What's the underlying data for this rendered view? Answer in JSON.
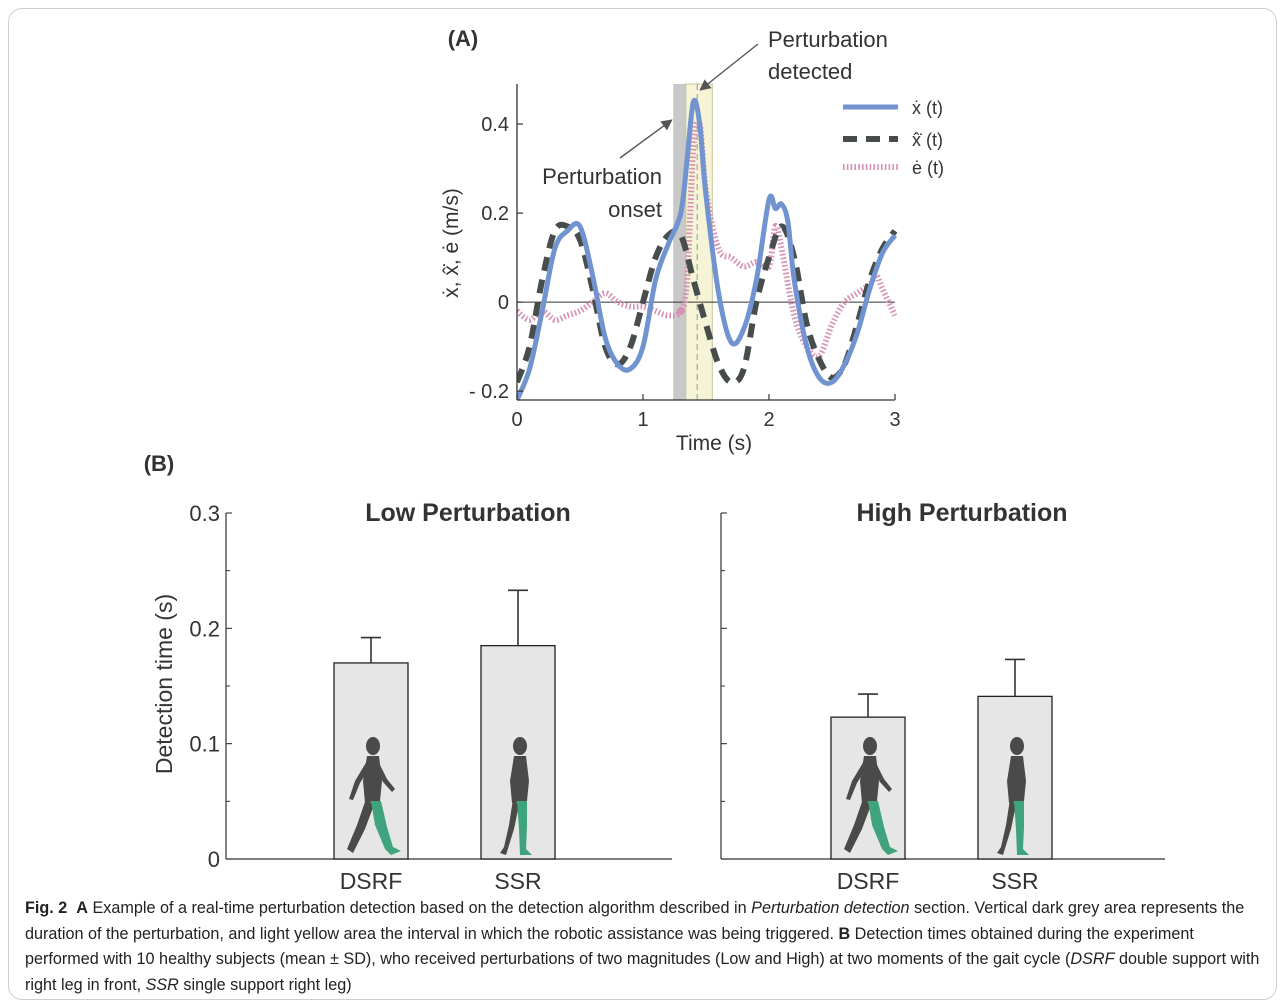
{
  "chart_data": [
    {
      "type": "line",
      "panel_label": "(A)",
      "xlabel": "Time (s)",
      "ylabel": "ẋ, x̂̇, ė (m/s)",
      "xlim": [
        0,
        3
      ],
      "ylim": [
        -0.22,
        0.49
      ],
      "xticks": [
        0,
        1,
        2,
        3
      ],
      "xtick_labels": [
        "0",
        "1",
        "2",
        "3"
      ],
      "yticks": [
        -0.2,
        0,
        0.2,
        0.4
      ],
      "ytick_labels": [
        "- 0.2",
        "0",
        "0.2",
        "0.4"
      ],
      "perturbation_span": [
        1.24,
        1.34
      ],
      "trigger_span": [
        1.34,
        1.55
      ],
      "detection_time": 1.43,
      "annotations": [
        {
          "text": [
            "Perturbation",
            "onset"
          ],
          "points_to_time": 1.26
        },
        {
          "text": [
            "Perturbation",
            "detected"
          ],
          "points_to_time": 1.43
        }
      ],
      "legend": [
        "ẋ (t)",
        "x̂̇ (t)",
        "ė (t)"
      ],
      "legend_position": "top-right",
      "series": [
        {
          "name": "ẋ (t)",
          "style": "solid",
          "color": "#7193cf",
          "x": [
            0.0,
            0.1,
            0.2,
            0.3,
            0.4,
            0.5,
            0.6,
            0.7,
            0.8,
            0.9,
            1.0,
            1.1,
            1.2,
            1.3,
            1.35,
            1.4,
            1.45,
            1.5,
            1.6,
            1.7,
            1.8,
            1.9,
            2.0,
            2.05,
            2.1,
            2.15,
            2.2,
            2.3,
            2.4,
            2.5,
            2.6,
            2.7,
            2.8,
            2.9,
            3.0
          ],
          "y": [
            -0.22,
            -0.15,
            -0.02,
            0.12,
            0.16,
            0.17,
            0.06,
            -0.08,
            -0.14,
            -0.15,
            -0.1,
            0.05,
            0.13,
            0.2,
            0.32,
            0.45,
            0.4,
            0.24,
            0.02,
            -0.09,
            -0.06,
            0.05,
            0.23,
            0.21,
            0.22,
            0.18,
            0.05,
            -0.1,
            -0.17,
            -0.18,
            -0.14,
            -0.07,
            0.03,
            0.11,
            0.15
          ]
        },
        {
          "name": "x̂̇ (t)",
          "style": "dashed",
          "color": "#474d4c",
          "x": [
            0.0,
            0.1,
            0.2,
            0.3,
            0.4,
            0.5,
            0.6,
            0.7,
            0.8,
            0.9,
            1.0,
            1.1,
            1.2,
            1.3,
            1.4,
            1.5,
            1.6,
            1.7,
            1.8,
            1.9,
            2.0,
            2.1,
            2.2,
            2.3,
            2.4,
            2.5,
            2.6,
            2.7,
            2.8,
            2.9,
            3.0
          ],
          "y": [
            -0.18,
            -0.1,
            0.05,
            0.16,
            0.17,
            0.14,
            0.03,
            -0.1,
            -0.14,
            -0.1,
            0.0,
            0.1,
            0.15,
            0.15,
            0.05,
            -0.05,
            -0.14,
            -0.18,
            -0.15,
            0.0,
            0.1,
            0.17,
            0.1,
            -0.05,
            -0.13,
            -0.17,
            -0.14,
            -0.05,
            0.05,
            0.12,
            0.16
          ]
        },
        {
          "name": "ė (t)",
          "style": "dotted",
          "color": "#d890b4",
          "x": [
            0.0,
            0.1,
            0.2,
            0.3,
            0.4,
            0.5,
            0.6,
            0.7,
            0.8,
            0.9,
            1.0,
            1.1,
            1.2,
            1.3,
            1.35,
            1.4,
            1.45,
            1.5,
            1.6,
            1.7,
            1.8,
            1.9,
            2.0,
            2.05,
            2.1,
            2.2,
            2.3,
            2.4,
            2.5,
            2.6,
            2.7,
            2.8,
            2.85,
            2.9,
            3.0
          ],
          "y": [
            -0.02,
            -0.04,
            -0.02,
            -0.04,
            -0.03,
            -0.02,
            0.0,
            0.02,
            0.0,
            -0.01,
            -0.01,
            -0.02,
            -0.03,
            -0.02,
            0.05,
            0.35,
            0.4,
            0.25,
            0.12,
            0.1,
            0.08,
            0.09,
            0.08,
            0.17,
            0.12,
            -0.03,
            -0.1,
            -0.12,
            -0.05,
            0.0,
            0.02,
            0.04,
            0.06,
            0.03,
            -0.03
          ]
        }
      ]
    },
    {
      "type": "bar",
      "panel_label": "(B)",
      "ylabel": "Detection time (s)",
      "ylim": [
        0,
        0.3
      ],
      "yticks": [
        0,
        0.1,
        0.2,
        0.3
      ],
      "ytick_labels": [
        "0",
        "0.1",
        "0.2",
        "0.3"
      ],
      "subplots": [
        {
          "title": "Low Perturbation",
          "categories": [
            "DSRF",
            "SSR"
          ],
          "values": [
            0.17,
            0.185
          ],
          "errors": [
            0.022,
            0.048
          ]
        },
        {
          "title": "High Perturbation",
          "categories": [
            "DSRF",
            "SSR"
          ],
          "values": [
            0.123,
            0.141
          ],
          "errors": [
            0.02,
            0.032
          ]
        }
      ]
    }
  ],
  "caption": {
    "fig_label": "Fig. 2",
    "part_a_label": "A",
    "part_a_text_1": " Example of a real-time perturbation detection based on the detection algorithm described in ",
    "part_a_italic": "Perturbation detection",
    "part_a_text_2": " section. Vertical dark grey area represents the duration of the perturbation, and light yellow area the interval in which the robotic assistance was being triggered. ",
    "part_b_label": "B",
    "part_b_text_1": " Detection times obtained during the experiment performed with 10 healthy subjects (mean ± SD), who received perturbations of two magnitudes (Low and High) at two moments of the gait cycle (",
    "abbr_dsrf": "DSRF",
    "part_b_text_2": " double support with right leg in front, ",
    "abbr_ssr": "SSR",
    "part_b_text_3": " single support right leg)"
  }
}
